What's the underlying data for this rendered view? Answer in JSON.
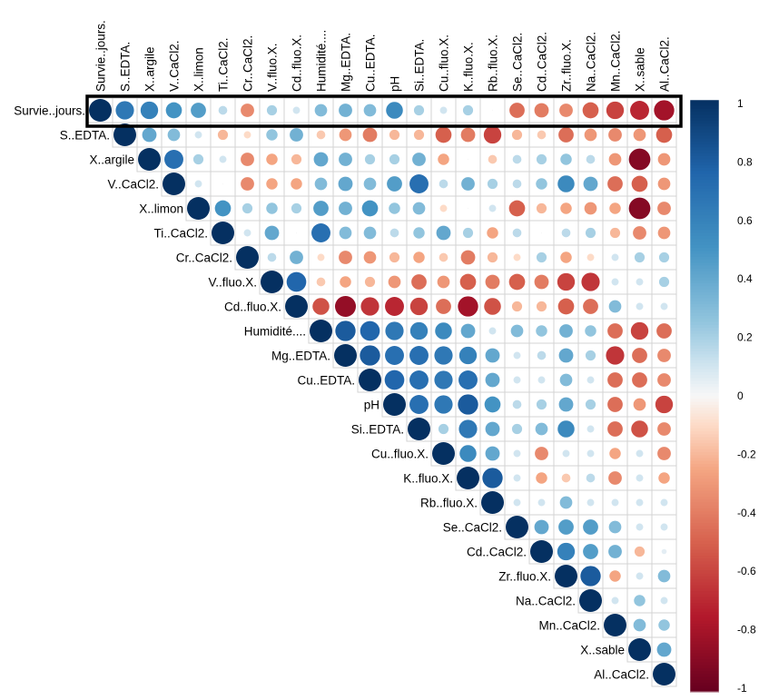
{
  "chart_data": {
    "type": "heatmap",
    "subtype": "correlation-matrix-upper-circles",
    "variables": [
      "Survie..jours.",
      "S..EDTA.",
      "X..argile",
      "V..CaCl2.",
      "X..limon",
      "Ti..CaCl2.",
      "Cr..CaCl2.",
      "V..fluo.X.",
      "Cd..fluo.X.",
      "Humidité....",
      "Mg..EDTA.",
      "Cu..EDTA.",
      "pH",
      "Si..EDTA.",
      "Cu..fluo.X.",
      "K..fluo.X.",
      "Rb..fluo.X.",
      "Se..CaCl2.",
      "Cd..CaCl2.",
      "Zr..fluo.X.",
      "Na..CaCl2.",
      "Mn..CaCl2.",
      "X..sable",
      "Al..CaCl2."
    ],
    "correlations_upper": [
      [
        1,
        0.65,
        0.6,
        0.5,
        0.45,
        0.15,
        -0.35,
        0.2,
        0.1,
        0.3,
        0.35,
        0.3,
        0.55,
        0.2,
        0.1,
        0.2,
        0,
        -0.45,
        -0.4,
        -0.35,
        -0.5,
        -0.6,
        -0.7,
        -0.8
      ],
      [
        1,
        0.4,
        0.3,
        0.1,
        -0.2,
        -0.1,
        0.25,
        0.35,
        -0.15,
        -0.3,
        -0.4,
        -0.2,
        -0.2,
        -0.5,
        -0.4,
        -0.6,
        -0.2,
        -0.15,
        -0.45,
        -0.3,
        -0.35,
        -0.3,
        -0.5
      ],
      [
        1,
        0.7,
        0.2,
        0.1,
        -0.35,
        -0.25,
        -0.2,
        0.4,
        0.35,
        0.2,
        0.2,
        0.35,
        -0.25,
        0,
        -0.15,
        0.15,
        0.2,
        0.25,
        0.15,
        -0.3,
        -0.9,
        -0.3
      ],
      [
        1,
        0.1,
        0,
        -0.35,
        -0.25,
        -0.25,
        0.3,
        0.4,
        0.3,
        0.45,
        0.7,
        0.15,
        0.35,
        0.2,
        0.15,
        0.25,
        0.55,
        0.4,
        -0.45,
        -0.5,
        -0.3
      ],
      [
        1,
        0.5,
        0.2,
        0.25,
        0.2,
        0.45,
        0.35,
        0.5,
        0.25,
        0.3,
        -0.1,
        0,
        0.1,
        -0.5,
        -0.2,
        -0.25,
        -0.3,
        -0.25,
        -0.9,
        -0.35
      ],
      [
        1,
        0.1,
        0.4,
        0,
        0.7,
        0.3,
        0.3,
        0.15,
        0.25,
        0.4,
        0.2,
        -0.25,
        0.15,
        0,
        0.15,
        0.2,
        -0.2,
        -0.35,
        -0.3
      ],
      [
        1,
        0.15,
        0.35,
        -0.1,
        -0.35,
        -0.3,
        -0.2,
        -0.25,
        -0.15,
        -0.4,
        -0.2,
        -0.1,
        0.2,
        -0.25,
        -0.1,
        0.1,
        0.2,
        0.2
      ],
      [
        1,
        0.75,
        -0.15,
        -0.25,
        -0.2,
        -0.3,
        -0.45,
        -0.3,
        -0.5,
        -0.4,
        -0.5,
        -0.4,
        -0.6,
        -0.65,
        0.1,
        0.1,
        0.2
      ],
      [
        1,
        -0.55,
        -0.85,
        -0.65,
        -0.7,
        -0.6,
        -0.45,
        -0.8,
        -0.55,
        -0.2,
        -0.2,
        -0.5,
        -0.45,
        0.3,
        0.1,
        0.1
      ],
      [
        1,
        0.8,
        0.75,
        0.65,
        0.6,
        0.55,
        0.4,
        0.1,
        0.3,
        0.25,
        0.35,
        0.25,
        -0.45,
        -0.6,
        -0.45
      ],
      [
        1,
        0.8,
        0.7,
        0.7,
        0.65,
        0.6,
        0.4,
        0.1,
        0.15,
        0.4,
        0.2,
        -0.65,
        -0.45,
        -0.35
      ],
      [
        1,
        0.75,
        0.7,
        0.65,
        0.7,
        0.4,
        0.1,
        0.1,
        0.3,
        0.1,
        -0.45,
        -0.45,
        -0.35
      ],
      [
        1,
        0.7,
        0.65,
        0.8,
        0.5,
        0.15,
        0.2,
        0.4,
        0.2,
        -0.45,
        -0.3,
        -0.6
      ],
      [
        1,
        0.2,
        0.65,
        0.4,
        0.2,
        0.3,
        0.55,
        0.1,
        -0.45,
        -0.55,
        -0.35
      ],
      [
        1,
        0.55,
        0.4,
        0.1,
        -0.35,
        0.1,
        0.1,
        -0.25,
        0.1,
        -0.35
      ],
      [
        1,
        0.8,
        0.1,
        -0.25,
        -0.15,
        0.15,
        -0.35,
        0.1,
        -0.25
      ],
      [
        1,
        0.1,
        0.1,
        0.3,
        0.1,
        0.1,
        0.1,
        0.1
      ],
      [
        1,
        0.4,
        0.45,
        0.45,
        0.3,
        0.1,
        0.1
      ],
      [
        1,
        0.6,
        0.45,
        0.35,
        -0.2,
        0.05
      ],
      [
        1,
        0.8,
        -0.25,
        0.1,
        0.3
      ],
      [
        1,
        0.1,
        0.25,
        0.1
      ],
      [
        1,
        0.3,
        0.25
      ],
      [
        1,
        0.4
      ],
      [
        1
      ]
    ],
    "colorbar": {
      "range": [
        -1,
        1
      ],
      "ticks": [
        "1",
        "0.8",
        "0.6",
        "0.4",
        "0.2",
        "0",
        "-0.2",
        "-0.4",
        "-0.6",
        "-0.8",
        "-1"
      ]
    },
    "highlight": {
      "row": "Survie..jours.",
      "style": "black rectangle around first row"
    },
    "colors": {
      "negative": "#67001F",
      "mid_neg": "#D6604D",
      "light_neg": "#FDDBC7",
      "zero": "#F7F7F7",
      "light_pos": "#D1E5F0",
      "mid_pos": "#4393C3",
      "positive": "#053061",
      "grid": "#D3D3D3",
      "highlight": "#000000"
    }
  }
}
